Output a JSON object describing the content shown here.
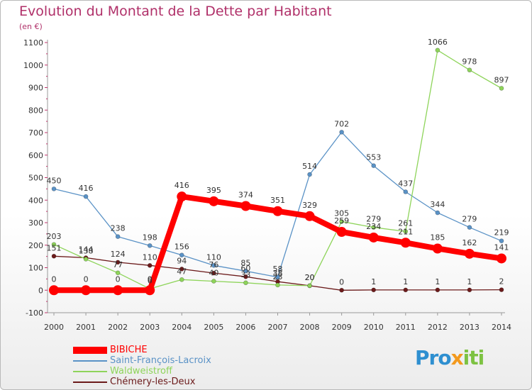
{
  "title": "Evolution du Montant de la Dette par Habitant",
  "unit_label": "(en €)",
  "logo_text": "Proxiti",
  "chart_data": {
    "type": "line",
    "x": [
      "2000",
      "2001",
      "2002",
      "2003",
      "2004",
      "2005",
      "2006",
      "2007",
      "2008",
      "2009",
      "2010",
      "2011",
      "2012",
      "2013",
      "2014"
    ],
    "ylim": [
      -100,
      1100
    ],
    "yticks": [
      -100,
      0,
      100,
      200,
      300,
      400,
      500,
      600,
      700,
      800,
      900,
      1000,
      1100
    ],
    "grid": false,
    "legend_position": "bottom-left",
    "series": [
      {
        "name": "BIBICHE",
        "color": "#ff0000",
        "width": 8,
        "marker": 7,
        "values": [
          0,
          0,
          0,
          0,
          416,
          395,
          374,
          351,
          329,
          259,
          234,
          211,
          185,
          162,
          141
        ]
      },
      {
        "name": "Saint-François-Lacroix",
        "color": "#5a92c6",
        "width": 1.3,
        "marker": 3,
        "values": [
          450,
          416,
          238,
          198,
          156,
          110,
          85,
          58,
          514,
          702,
          553,
          437,
          344,
          279,
          219
        ]
      },
      {
        "name": "Waldweistroff",
        "color": "#8ed45a",
        "width": 1.3,
        "marker": 3,
        "values": [
          203,
          138,
          77,
          6,
          47,
          40,
          33,
          23,
          20,
          305,
          279,
          261,
          1066,
          978,
          897
        ]
      },
      {
        "name": "Chémery-les-Deux",
        "color": "#6b1a1a",
        "width": 1.3,
        "marker": 3,
        "values": [
          151,
          144,
          124,
          110,
          94,
          76,
          60,
          38,
          20,
          0,
          1,
          1,
          1,
          1,
          2
        ]
      }
    ]
  }
}
